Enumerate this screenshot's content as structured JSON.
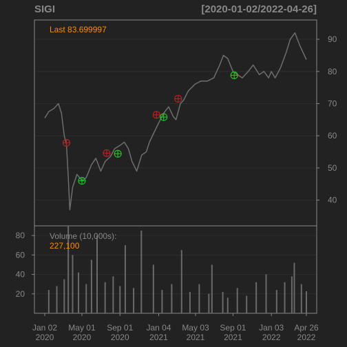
{
  "chart_data": {
    "type": "line",
    "symbol": "SIGI",
    "date_range": "[2020-01-02/2022-04-26]",
    "last_label": "Last 83.699997",
    "volume_label": "Volume (10,000s):",
    "volume_last": "227,100",
    "price_axis": {
      "ylim": [
        32,
        96
      ],
      "ticks": [
        40,
        50,
        60,
        70,
        80,
        90
      ]
    },
    "volume_axis": {
      "ylim": [
        0,
        90
      ],
      "ticks": [
        20,
        40,
        60,
        80
      ]
    },
    "x_ticks": [
      {
        "date": "2020-01-02",
        "top": "Jan 02",
        "bottom": "2020"
      },
      {
        "date": "2020-05-01",
        "top": "May 01",
        "bottom": "2020"
      },
      {
        "date": "2020-09-01",
        "top": "Sep 01",
        "bottom": "2020"
      },
      {
        "date": "2021-01-04",
        "top": "Jan 04",
        "bottom": "2021"
      },
      {
        "date": "2021-05-03",
        "top": "May 03",
        "bottom": "2021"
      },
      {
        "date": "2021-09-01",
        "top": "Sep 01",
        "bottom": "2021"
      },
      {
        "date": "2022-01-03",
        "top": "Jan 03",
        "bottom": "2022"
      },
      {
        "date": "2022-04-26",
        "top": "Apr 26",
        "bottom": "2022"
      }
    ],
    "price_series": [
      [
        "2020-01-02",
        65.5
      ],
      [
        "2020-01-15",
        67.5
      ],
      [
        "2020-02-01",
        68.5
      ],
      [
        "2020-02-15",
        70
      ],
      [
        "2020-02-25",
        67
      ],
      [
        "2020-03-05",
        60
      ],
      [
        "2020-03-12",
        57.5
      ],
      [
        "2020-03-18",
        47
      ],
      [
        "2020-03-23",
        37
      ],
      [
        "2020-04-01",
        44
      ],
      [
        "2020-04-15",
        48
      ],
      [
        "2020-05-01",
        46
      ],
      [
        "2020-05-15",
        47
      ],
      [
        "2020-06-01",
        51
      ],
      [
        "2020-06-15",
        53
      ],
      [
        "2020-07-01",
        49
      ],
      [
        "2020-07-15",
        52
      ],
      [
        "2020-08-01",
        53.5
      ],
      [
        "2020-08-15",
        56
      ],
      [
        "2020-09-01",
        57
      ],
      [
        "2020-09-15",
        58
      ],
      [
        "2020-09-28",
        56
      ],
      [
        "2020-10-10",
        52
      ],
      [
        "2020-10-25",
        49
      ],
      [
        "2020-11-10",
        54
      ],
      [
        "2020-11-25",
        55
      ],
      [
        "2020-12-05",
        58
      ],
      [
        "2020-12-20",
        61
      ],
      [
        "2021-01-04",
        64
      ],
      [
        "2021-01-20",
        67
      ],
      [
        "2021-02-05",
        69
      ],
      [
        "2021-02-20",
        66
      ],
      [
        "2021-03-01",
        65
      ],
      [
        "2021-03-15",
        70
      ],
      [
        "2021-03-25",
        71
      ],
      [
        "2021-04-10",
        74
      ],
      [
        "2021-05-01",
        76
      ],
      [
        "2021-05-20",
        77
      ],
      [
        "2021-06-10",
        77
      ],
      [
        "2021-07-01",
        78
      ],
      [
        "2021-07-20",
        82
      ],
      [
        "2021-08-01",
        85
      ],
      [
        "2021-08-15",
        84
      ],
      [
        "2021-09-01",
        80
      ],
      [
        "2021-09-15",
        79
      ],
      [
        "2021-10-01",
        78
      ],
      [
        "2021-10-20",
        80
      ],
      [
        "2021-11-05",
        82
      ],
      [
        "2021-11-25",
        79
      ],
      [
        "2021-12-10",
        80
      ],
      [
        "2021-12-25",
        78
      ],
      [
        "2022-01-03",
        80
      ],
      [
        "2022-01-15",
        78
      ],
      [
        "2022-02-01",
        81
      ],
      [
        "2022-02-20",
        86
      ],
      [
        "2022-03-05",
        90
      ],
      [
        "2022-03-20",
        92
      ],
      [
        "2022-04-05",
        88
      ],
      [
        "2022-04-26",
        83.7
      ]
    ],
    "signals": [
      {
        "date": "2020-03-12",
        "value": 57.8,
        "kind": "sell",
        "color": "#b22222"
      },
      {
        "date": "2020-05-01",
        "value": 46.0,
        "kind": "buy",
        "color": "#22c022"
      },
      {
        "date": "2020-07-20",
        "value": 54.6,
        "kind": "sell",
        "color": "#b22222"
      },
      {
        "date": "2020-08-25",
        "value": 54.4,
        "kind": "buy",
        "color": "#22c022"
      },
      {
        "date": "2020-12-28",
        "value": 66.5,
        "kind": "sell",
        "color": "#b22222"
      },
      {
        "date": "2021-01-20",
        "value": 65.8,
        "kind": "buy",
        "color": "#22c022"
      },
      {
        "date": "2021-03-08",
        "value": 71.5,
        "kind": "sell",
        "color": "#b22222"
      },
      {
        "date": "2021-09-05",
        "value": 78.8,
        "kind": "buy",
        "color": "#22c022"
      }
    ],
    "volume_series": [
      [
        "2020-01-15",
        24
      ],
      [
        "2020-02-10",
        28
      ],
      [
        "2020-03-05",
        35
      ],
      [
        "2020-03-18",
        100
      ],
      [
        "2020-04-01",
        60
      ],
      [
        "2020-04-20",
        42
      ],
      [
        "2020-05-15",
        30
      ],
      [
        "2020-06-01",
        55
      ],
      [
        "2020-06-19",
        80
      ],
      [
        "2020-07-15",
        32
      ],
      [
        "2020-08-10",
        38
      ],
      [
        "2020-09-01",
        28
      ],
      [
        "2020-09-18",
        70
      ],
      [
        "2020-10-15",
        26
      ],
      [
        "2020-11-09",
        85
      ],
      [
        "2020-12-18",
        50
      ],
      [
        "2021-01-15",
        24
      ],
      [
        "2021-02-15",
        30
      ],
      [
        "2021-03-19",
        65
      ],
      [
        "2021-04-15",
        22
      ],
      [
        "2021-05-15",
        30
      ],
      [
        "2021-06-15",
        20
      ],
      [
        "2021-06-25",
        50
      ],
      [
        "2021-07-30",
        22
      ],
      [
        "2021-08-15",
        16
      ],
      [
        "2021-09-15",
        26
      ],
      [
        "2021-10-15",
        18
      ],
      [
        "2021-11-15",
        32
      ],
      [
        "2021-12-17",
        40
      ],
      [
        "2022-01-20",
        24
      ],
      [
        "2022-02-15",
        32
      ],
      [
        "2022-03-10",
        38
      ],
      [
        "2022-03-18",
        52
      ],
      [
        "2022-04-10",
        30
      ],
      [
        "2022-04-26",
        22.7
      ]
    ],
    "colors": {
      "background": "#222222",
      "panel_border": "#888888",
      "grid": "#2e2e2e",
      "price_line": "#6e6e6e",
      "volume_bar": "#6a6a6a",
      "text": "#888888",
      "highlight": "#ff8c00"
    }
  }
}
